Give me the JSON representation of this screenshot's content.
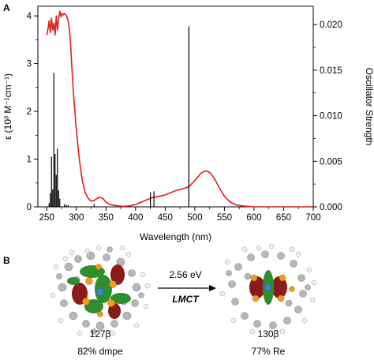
{
  "panel_a": {
    "label": "A"
  },
  "panel_b": {
    "label": "B",
    "left_orbital": {
      "name": "127β",
      "composition": "82% dmpe"
    },
    "right_orbital": {
      "name": "130β",
      "composition": "77% Re"
    },
    "transition": {
      "energy": "2.56 eV",
      "type": "LMCT"
    }
  },
  "colors": {
    "absorption": "#e0201b",
    "oscillator": "#000000"
  },
  "chart_data": {
    "type": "line",
    "title": "",
    "xlabel": "Wavelength (nm)",
    "ylabel": "ε (10³ M⁻¹cm⁻¹)",
    "y2label": "Oscillator Strength",
    "xlim": [
      235,
      700
    ],
    "ylim": [
      0,
      4.2
    ],
    "y2lim": [
      0,
      0.022
    ],
    "xticks": [
      250,
      300,
      350,
      400,
      450,
      500,
      550,
      600,
      650,
      700
    ],
    "yticks": [
      0,
      1,
      2,
      3,
      4
    ],
    "y2ticks": [
      "0.000",
      "0.005",
      "0.010",
      "0.015",
      "0.020"
    ],
    "grid": false,
    "series": [
      {
        "kind": "line",
        "axis": "left",
        "x": [
          250,
          252,
          254,
          256,
          258,
          260,
          262,
          264,
          266,
          268,
          270,
          272,
          274,
          276,
          278,
          280,
          282,
          284,
          286,
          288,
          290,
          292,
          295,
          300,
          305,
          310,
          315,
          320,
          325,
          330,
          335,
          340,
          345,
          350,
          355,
          360,
          370,
          380,
          390,
          400,
          410,
          420,
          430,
          440,
          450,
          460,
          470,
          480,
          490,
          500,
          505,
          510,
          515,
          520,
          525,
          530,
          535,
          540,
          545,
          550,
          560,
          570,
          580,
          590,
          600,
          620,
          640,
          660,
          680,
          700
        ],
        "y": [
          3.6,
          3.72,
          3.9,
          3.65,
          3.95,
          3.7,
          3.85,
          3.6,
          4.0,
          3.7,
          3.95,
          4.1,
          3.98,
          4.05,
          4.02,
          4.05,
          4.03,
          3.98,
          3.9,
          3.75,
          3.45,
          3.0,
          2.4,
          1.6,
          1.0,
          0.55,
          0.3,
          0.18,
          0.12,
          0.13,
          0.18,
          0.2,
          0.17,
          0.1,
          0.06,
          0.04,
          0.02,
          0.01,
          0.02,
          0.05,
          0.1,
          0.15,
          0.2,
          0.22,
          0.25,
          0.3,
          0.35,
          0.38,
          0.42,
          0.55,
          0.62,
          0.7,
          0.74,
          0.75,
          0.72,
          0.65,
          0.55,
          0.43,
          0.32,
          0.22,
          0.1,
          0.04,
          0.02,
          0.01,
          0.0,
          0.0,
          0.0,
          0.0,
          0.0,
          0.0
        ]
      },
      {
        "kind": "stick",
        "axis": "right",
        "x": [
          254,
          256,
          258,
          260,
          262,
          264,
          266,
          268,
          270,
          272,
          280,
          283,
          286,
          330,
          425,
          431,
          490
        ],
        "y": [
          0.0004,
          0.0015,
          0.0055,
          0.0019,
          0.0147,
          0.0058,
          0.0035,
          0.0064,
          0.0018,
          0.0009,
          0.0003,
          0.0002,
          0.0002,
          0.0003,
          0.0016,
          0.0017,
          0.0198
        ]
      }
    ]
  }
}
